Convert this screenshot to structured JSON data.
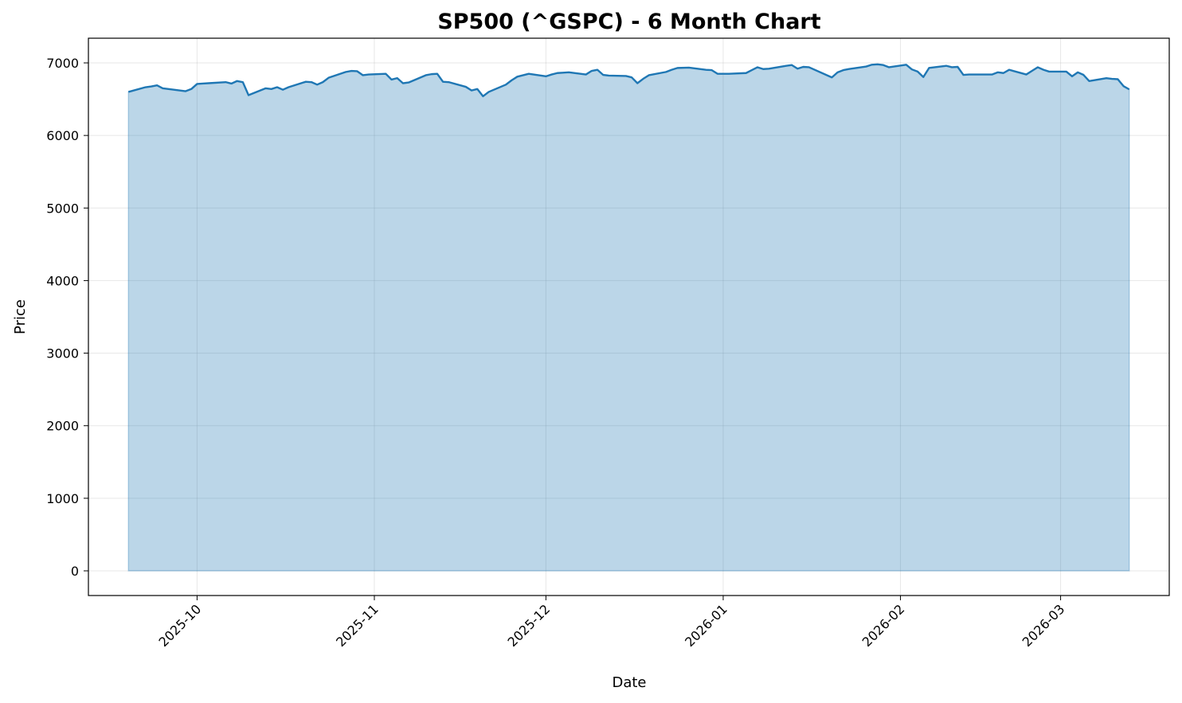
{
  "chart_data": {
    "type": "area",
    "title": "SP500 (^GSPC) - 6 Month Chart",
    "xlabel": "Date",
    "ylabel": "Price",
    "xlim": [
      "2025-09-12",
      "2026-03-20"
    ],
    "ylim": [
      -340,
      7340
    ],
    "grid": true,
    "line_color": "#1f77b4",
    "fill_color": "#1f77b4",
    "fill_alpha": 0.3,
    "y_ticks": [
      0,
      1000,
      2000,
      3000,
      4000,
      5000,
      6000,
      7000
    ],
    "y_tick_labels": [
      "0",
      "1000",
      "2000",
      "3000",
      "4000",
      "5000",
      "6000",
      "7000"
    ],
    "x_ticks": [
      "2025-10-01",
      "2025-11-01",
      "2025-12-01",
      "2026-01-01",
      "2026-02-01",
      "2026-03-01"
    ],
    "x_tick_labels": [
      "2025-10",
      "2025-11",
      "2025-12",
      "2026-01",
      "2026-02",
      "2026-03"
    ],
    "series": [
      {
        "dates": [
          "2025-09-19",
          "2025-09-22",
          "2025-09-23",
          "2025-09-24",
          "2025-09-25",
          "2025-09-26",
          "2025-09-29",
          "2025-09-30",
          "2025-10-01",
          "2025-10-02",
          "2025-10-03",
          "2025-10-06",
          "2025-10-07",
          "2025-10-08",
          "2025-10-09",
          "2025-10-10",
          "2025-10-13",
          "2025-10-14",
          "2025-10-15",
          "2025-10-16",
          "2025-10-17",
          "2025-10-20",
          "2025-10-21",
          "2025-10-22",
          "2025-10-23",
          "2025-10-24",
          "2025-10-27",
          "2025-10-28",
          "2025-10-29",
          "2025-10-30",
          "2025-10-31",
          "2025-11-03",
          "2025-11-04",
          "2025-11-05",
          "2025-11-06",
          "2025-11-07",
          "2025-11-10",
          "2025-11-11",
          "2025-11-12",
          "2025-11-13",
          "2025-11-14",
          "2025-11-17",
          "2025-11-18",
          "2025-11-19",
          "2025-11-20",
          "2025-11-21",
          "2025-11-24",
          "2025-11-25",
          "2025-11-26",
          "2025-11-28",
          "2025-12-01",
          "2025-12-02",
          "2025-12-03",
          "2025-12-04",
          "2025-12-05",
          "2025-12-08",
          "2025-12-09",
          "2025-12-10",
          "2025-12-11",
          "2025-12-12",
          "2025-12-15",
          "2025-12-16",
          "2025-12-17",
          "2025-12-18",
          "2025-12-19",
          "2025-12-22",
          "2025-12-23",
          "2025-12-24",
          "2025-12-26",
          "2025-12-29",
          "2025-12-30",
          "2025-12-31",
          "2026-01-02",
          "2026-01-05",
          "2026-01-06",
          "2026-01-07",
          "2026-01-08",
          "2026-01-09",
          "2026-01-12",
          "2026-01-13",
          "2026-01-14",
          "2026-01-15",
          "2026-01-16",
          "2026-01-20",
          "2026-01-21",
          "2026-01-22",
          "2026-01-23",
          "2026-01-26",
          "2026-01-27",
          "2026-01-28",
          "2026-01-29",
          "2026-01-30",
          "2026-02-02",
          "2026-02-03",
          "2026-02-04",
          "2026-02-05",
          "2026-02-06",
          "2026-02-09",
          "2026-02-10",
          "2026-02-11",
          "2026-02-12",
          "2026-02-13",
          "2026-02-17",
          "2026-02-18",
          "2026-02-19",
          "2026-02-20",
          "2026-02-23",
          "2026-02-24",
          "2026-02-25",
          "2026-02-26",
          "2026-02-27",
          "2026-03-02",
          "2026-03-03",
          "2026-03-04",
          "2026-03-05",
          "2026-03-06",
          "2026-03-09",
          "2026-03-10",
          "2026-03-11",
          "2026-03-12",
          "2026-03-13"
        ],
        "values": [
          6600,
          6665,
          6675,
          6690,
          6650,
          6640,
          6610,
          6640,
          6710,
          6715,
          6720,
          6735,
          6715,
          6750,
          6735,
          6555,
          6650,
          6640,
          6665,
          6630,
          6665,
          6740,
          6735,
          6700,
          6735,
          6795,
          6875,
          6890,
          6885,
          6830,
          6840,
          6850,
          6770,
          6790,
          6720,
          6730,
          6830,
          6845,
          6850,
          6740,
          6735,
          6670,
          6620,
          6640,
          6540,
          6600,
          6700,
          6760,
          6810,
          6850,
          6815,
          6840,
          6860,
          6865,
          6870,
          6840,
          6890,
          6905,
          6835,
          6825,
          6820,
          6800,
          6720,
          6780,
          6830,
          6875,
          6905,
          6930,
          6935,
          6905,
          6900,
          6850,
          6850,
          6860,
          6900,
          6940,
          6915,
          6920,
          6960,
          6970,
          6920,
          6945,
          6940,
          6800,
          6870,
          6900,
          6915,
          6950,
          6975,
          6980,
          6970,
          6940,
          6975,
          6910,
          6880,
          6805,
          6930,
          6960,
          6940,
          6945,
          6835,
          6840,
          6840,
          6870,
          6860,
          6905,
          6840,
          6890,
          6940,
          6905,
          6880,
          6880,
          6815,
          6870,
          6835,
          6750,
          6790,
          6780,
          6775,
          6680,
          6635
        ]
      }
    ]
  }
}
